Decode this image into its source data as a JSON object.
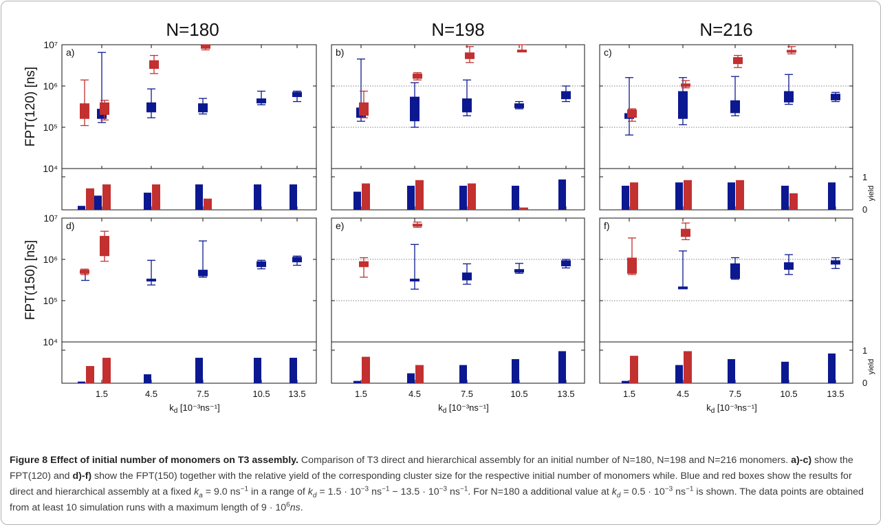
{
  "figure": {
    "column_titles": [
      "N=180",
      "N=198",
      "N=216"
    ],
    "y_tick_labels": {
      "top": [
        "10⁷",
        "10⁶",
        "10⁵",
        "10⁴"
      ],
      "bottom": [
        "10⁷",
        "10⁶",
        "10⁵",
        "10⁴"
      ]
    },
    "y_axis_labels": {
      "top": "FPT(120) [ns]",
      "bottom": "FPT(150) [ns]"
    },
    "yield_label": "yield",
    "yield_ticks": [
      "1",
      "0"
    ],
    "x_axis_label": "k",
    "x_axis_label_sub": "d",
    "x_axis_label_units": " [10⁻³ns⁻¹]",
    "colors": {
      "direct": "#0c1890",
      "hierarchical": "#c23030"
    }
  },
  "chart_data": [
    {
      "panel": "a)",
      "type": "boxplot",
      "column": "N=180",
      "row": "FPT(120)",
      "x_ticks": [
        "1.5",
        "4.5",
        "7.5",
        "10.5",
        "13.5"
      ],
      "y_scale": "log",
      "ylim": [
        10000,
        10000000
      ],
      "yield_ylim": [
        0,
        1
      ],
      "series": [
        {
          "name": "direct",
          "color": "#0c1890",
          "boxes": [
            {
              "k_d": 0.5,
              "whisker": null,
              "box": null
            },
            {
              "k_d": 1.5,
              "whisker": [
                130000,
                6500000
              ],
              "box": [
                160000,
                280000
              ]
            },
            {
              "k_d": 4.5,
              "whisker": [
                170000,
                850000
              ],
              "box": [
                230000,
                400000
              ]
            },
            {
              "k_d": 7.5,
              "whisker": [
                210000,
                500000
              ],
              "box": [
                230000,
                380000
              ]
            },
            {
              "k_d": 10.5,
              "whisker": [
                350000,
                750000
              ],
              "box": [
                380000,
                500000
              ]
            },
            {
              "k_d": 13.5,
              "whisker": [
                420000,
                750000
              ],
              "box": [
                540000,
                720000
              ]
            }
          ]
        },
        {
          "name": "hierarchical",
          "color": "#c23030",
          "boxes": [
            {
              "k_d": 0.5,
              "whisker": [
                110000,
                1400000
              ],
              "box": [
                160000,
                380000
              ]
            },
            {
              "k_d": 1.5,
              "whisker": [
                150000,
                450000
              ],
              "box": [
                200000,
                400000
              ]
            },
            {
              "k_d": 4.5,
              "whisker": [
                2000000,
                5500000
              ],
              "box": [
                2600000,
                4200000
              ]
            },
            {
              "k_d": 7.5,
              "whisker": [
                7500000,
                10000000
              ],
              "box": [
                8000000,
                9800000
              ]
            }
          ]
        }
      ],
      "yield": [
        {
          "k_d": 0.5,
          "direct": 0.12,
          "hierarchical": 0.65
        },
        {
          "k_d": 1.5,
          "direct": 0.43,
          "hierarchical": 0.77
        },
        {
          "k_d": 4.5,
          "direct": 0.52,
          "hierarchical": 0.77
        },
        {
          "k_d": 7.5,
          "direct": 0.77,
          "hierarchical": 0.34
        },
        {
          "k_d": 10.5,
          "direct": 0.77,
          "hierarchical": 0
        },
        {
          "k_d": 13.5,
          "direct": 0.77,
          "hierarchical": 0
        }
      ]
    },
    {
      "panel": "b)",
      "type": "boxplot",
      "column": "N=198",
      "row": "FPT(120)",
      "x_ticks": [
        "1.5",
        "4.5",
        "7.5",
        "10.5",
        "13.5"
      ],
      "y_scale": "log",
      "ylim": [
        10000,
        10000000
      ],
      "yield_ylim": [
        0,
        1
      ],
      "series": [
        {
          "name": "direct",
          "color": "#0c1890",
          "boxes": [
            {
              "k_d": 1.5,
              "whisker": [
                140000,
                4500000
              ],
              "box": [
                170000,
                300000
              ]
            },
            {
              "k_d": 4.5,
              "whisker": [
                100000,
                1200000
              ],
              "box": [
                140000,
                550000
              ]
            },
            {
              "k_d": 7.5,
              "whisker": [
                190000,
                1400000
              ],
              "box": [
                230000,
                500000
              ]
            },
            {
              "k_d": 10.5,
              "whisker": [
                280000,
                420000
              ],
              "box": [
                290000,
                380000
              ]
            },
            {
              "k_d": 13.5,
              "whisker": [
                420000,
                1000000
              ],
              "box": [
                480000,
                750000
              ]
            }
          ]
        },
        {
          "name": "hierarchical",
          "color": "#c23030",
          "boxes": [
            {
              "k_d": 1.5,
              "whisker": [
                170000,
                750000
              ],
              "box": [
                190000,
                400000
              ]
            },
            {
              "k_d": 4.5,
              "whisker": [
                1400000,
                2100000
              ],
              "box": [
                1500000,
                2000000
              ]
            },
            {
              "k_d": 7.5,
              "whisker": [
                3700000,
                9000000
              ],
              "box": [
                4500000,
                6500000
              ]
            },
            {
              "k_d": 10.5,
              "whisker": [
                7000000,
                10000000
              ],
              "box": [
                7200000,
                7600000
              ]
            }
          ]
        }
      ],
      "yield": [
        {
          "k_d": 1.5,
          "direct": 0.55,
          "hierarchical": 0.8
        },
        {
          "k_d": 4.5,
          "direct": 0.73,
          "hierarchical": 0.9
        },
        {
          "k_d": 7.5,
          "direct": 0.73,
          "hierarchical": 0.8
        },
        {
          "k_d": 10.5,
          "direct": 0.73,
          "hierarchical": 0.07
        },
        {
          "k_d": 13.5,
          "direct": 0.92,
          "hierarchical": 0
        }
      ]
    },
    {
      "panel": "c)",
      "type": "boxplot",
      "column": "N=216",
      "row": "FPT(120)",
      "x_ticks": [
        "1.5",
        "4.5",
        "7.5",
        "10.5",
        "13.5"
      ],
      "y_scale": "log",
      "ylim": [
        10000,
        10000000
      ],
      "yield_ylim": [
        0,
        1
      ],
      "series": [
        {
          "name": "direct",
          "color": "#0c1890",
          "boxes": [
            {
              "k_d": 1.5,
              "whisker": [
                65000,
                1600000
              ],
              "box": [
                160000,
                220000
              ]
            },
            {
              "k_d": 4.5,
              "whisker": [
                115000,
                1600000
              ],
              "box": [
                160000,
                750000
              ]
            },
            {
              "k_d": 7.5,
              "whisker": [
                190000,
                1700000
              ],
              "box": [
                220000,
                450000
              ]
            },
            {
              "k_d": 10.5,
              "whisker": [
                360000,
                1900000
              ],
              "box": [
                400000,
                750000
              ]
            },
            {
              "k_d": 13.5,
              "whisker": [
                420000,
                700000
              ],
              "box": [
                450000,
                650000
              ]
            }
          ]
        },
        {
          "name": "hierarchical",
          "color": "#c23030",
          "boxes": [
            {
              "k_d": 1.5,
              "whisker": [
                140000,
                280000
              ],
              "box": [
                170000,
                270000
              ]
            },
            {
              "k_d": 4.5,
              "whisker": [
                900000,
                1350000
              ],
              "box": [
                950000,
                1150000
              ]
            },
            {
              "k_d": 7.5,
              "whisker": [
                2800000,
                5500000
              ],
              "box": [
                3400000,
                5000000
              ]
            },
            {
              "k_d": 10.5,
              "whisker": [
                6000000,
                9000000
              ],
              "box": [
                7000000,
                7500000
              ]
            }
          ]
        }
      ],
      "yield": [
        {
          "k_d": 1.5,
          "direct": 0.73,
          "hierarchical": 0.83
        },
        {
          "k_d": 4.5,
          "direct": 0.83,
          "hierarchical": 0.9
        },
        {
          "k_d": 7.5,
          "direct": 0.83,
          "hierarchical": 0.9
        },
        {
          "k_d": 10.5,
          "direct": 0.73,
          "hierarchical": 0.5
        },
        {
          "k_d": 13.5,
          "direct": 0.83,
          "hierarchical": 0
        }
      ]
    },
    {
      "panel": "d)",
      "type": "boxplot",
      "column": "N=180",
      "row": "FPT(150)",
      "x_ticks": [
        "1.5",
        "4.5",
        "7.5",
        "10.5",
        "13.5"
      ],
      "y_scale": "log",
      "ylim": [
        10000,
        10000000
      ],
      "yield_ylim": [
        0,
        1
      ],
      "series": [
        {
          "name": "direct",
          "color": "#0c1890",
          "boxes": [
            {
              "k_d": 0.5,
              "whisker": [
                310000,
                500000
              ],
              "box": null
            },
            {
              "k_d": 4.5,
              "whisker": [
                240000,
                950000
              ],
              "box": [
                330000,
                340000
              ]
            },
            {
              "k_d": 7.5,
              "whisker": [
                370000,
                2800000
              ],
              "box": [
                390000,
                560000
              ]
            },
            {
              "k_d": 10.5,
              "whisker": [
                590000,
                950000
              ],
              "box": [
                650000,
                900000
              ]
            },
            {
              "k_d": 13.5,
              "whisker": [
                720000,
                1200000
              ],
              "box": [
                850000,
                1150000
              ]
            }
          ]
        },
        {
          "name": "hierarchical",
          "color": "#c23030",
          "boxes": [
            {
              "k_d": 0.5,
              "whisker": [
                430000,
                580000
              ],
              "box": [
                450000,
                560000
              ]
            },
            {
              "k_d": 1.5,
              "whisker": [
                900000,
                4800000
              ],
              "box": [
                1200000,
                3700000
              ]
            }
          ]
        }
      ],
      "yield": [
        {
          "k_d": 0.5,
          "direct": 0.05,
          "hierarchical": 0.52
        },
        {
          "k_d": 1.5,
          "direct": 0,
          "hierarchical": 0.77
        },
        {
          "k_d": 4.5,
          "direct": 0.27,
          "hierarchical": 0
        },
        {
          "k_d": 7.5,
          "direct": 0.77,
          "hierarchical": 0
        },
        {
          "k_d": 10.5,
          "direct": 0.77,
          "hierarchical": 0
        },
        {
          "k_d": 13.5,
          "direct": 0.77,
          "hierarchical": 0
        }
      ]
    },
    {
      "panel": "e)",
      "type": "boxplot",
      "column": "N=198",
      "row": "FPT(150)",
      "x_ticks": [
        "1.5",
        "4.5",
        "7.5",
        "10.5",
        "13.5"
      ],
      "y_scale": "log",
      "ylim": [
        10000,
        10000000
      ],
      "yield_ylim": [
        0,
        1
      ],
      "series": [
        {
          "name": "direct",
          "color": "#0c1890",
          "boxes": [
            {
              "k_d": 4.5,
              "whisker": [
                190000,
                2300000
              ],
              "box": [
                330000,
                340000
              ]
            },
            {
              "k_d": 7.5,
              "whisker": [
                250000,
                780000
              ],
              "box": [
                310000,
                480000
              ]
            },
            {
              "k_d": 10.5,
              "whisker": [
                460000,
                800000
              ],
              "box": [
                480000,
                580000
              ]
            },
            {
              "k_d": 13.5,
              "whisker": [
                620000,
                1000000
              ],
              "box": [
                680000,
                950000
              ]
            }
          ]
        },
        {
          "name": "hierarchical",
          "color": "#c23030",
          "boxes": [
            {
              "k_d": 1.5,
              "whisker": [
                370000,
                1100000
              ],
              "box": [
                650000,
                900000
              ]
            },
            {
              "k_d": 4.5,
              "whisker": [
                6000000,
                8000000
              ],
              "box": [
                6500000,
                7300000
              ]
            }
          ]
        }
      ],
      "yield": [
        {
          "k_d": 1.5,
          "direct": 0.07,
          "hierarchical": 0.8
        },
        {
          "k_d": 4.5,
          "direct": 0.3,
          "hierarchical": 0.55
        },
        {
          "k_d": 7.5,
          "direct": 0.55,
          "hierarchical": 0
        },
        {
          "k_d": 10.5,
          "direct": 0.73,
          "hierarchical": 0
        },
        {
          "k_d": 13.5,
          "direct": 0.97,
          "hierarchical": 0
        }
      ]
    },
    {
      "panel": "f)",
      "type": "boxplot",
      "column": "N=216",
      "row": "FPT(150)",
      "x_ticks": [
        "1.5",
        "4.5",
        "7.5",
        "10.5",
        "13.5"
      ],
      "y_scale": "log",
      "ylim": [
        10000,
        10000000
      ],
      "yield_ylim": [
        0,
        1
      ],
      "series": [
        {
          "name": "direct",
          "color": "#0c1890",
          "boxes": [
            {
              "k_d": 4.5,
              "whisker": [
                200000,
                1600000
              ],
              "box": [
                200000,
                220000
              ]
            },
            {
              "k_d": 7.5,
              "whisker": [
                330000,
                1100000
              ],
              "box": [
                340000,
                800000
              ]
            },
            {
              "k_d": 10.5,
              "whisker": [
                430000,
                1300000
              ],
              "box": [
                560000,
                850000
              ]
            },
            {
              "k_d": 13.5,
              "whisker": [
                600000,
                1100000
              ],
              "box": [
                750000,
                950000
              ]
            }
          ]
        },
        {
          "name": "hierarchical",
          "color": "#c23030",
          "boxes": [
            {
              "k_d": 1.5,
              "whisker": [
                430000,
                3300000
              ],
              "box": [
                450000,
                1100000
              ]
            },
            {
              "k_d": 4.5,
              "whisker": [
                3000000,
                7600000
              ],
              "box": [
                3500000,
                5500000
              ]
            }
          ]
        }
      ],
      "yield": [
        {
          "k_d": 1.5,
          "direct": 0.07,
          "hierarchical": 0.83
        },
        {
          "k_d": 4.5,
          "direct": 0.55,
          "hierarchical": 0.97
        },
        {
          "k_d": 7.5,
          "direct": 0.73,
          "hierarchical": 0
        },
        {
          "k_d": 10.5,
          "direct": 0.65,
          "hierarchical": 0
        },
        {
          "k_d": 13.5,
          "direct": 0.9,
          "hierarchical": 0
        }
      ]
    }
  ],
  "caption": {
    "title": "Figure 8 Effect of initial number of monomers on T3 assembly.",
    "t1": " Comparison of T3 direct and hierarchical assembly for an initial number of N=180, N=198 and N=216 monomers. ",
    "b1": "a)",
    "t2": "-",
    "b2": "c)",
    "t3": " show the FPT(120) and ",
    "b3": "d)",
    "t4": "-",
    "b4": "f)",
    "t5": " show the FPT(150) together with the relative yield of the corresponding cluster size for the respective initial number of monomers while. Blue and red boxes show the results for direct and hierarchical assembly at a fixed ",
    "ka": "k",
    "ka_sub": "a",
    "t6": " = 9.0 ns",
    "sup_m1": "−1",
    "t7": " in a range of ",
    "kd": "k",
    "kd_sub": "d",
    "t8": " = 1.5 · 10",
    "sup_m3": "−3",
    "t9": " ns",
    "sup_m1b": "−1",
    "t10": " − 13.5 · 10",
    "sup_m3b": "−3",
    "t11": " ns",
    "sup_m1c": "−1",
    "t12": ". For N=180 a additional value at ",
    "kd2": "k",
    "kd2_sub": "d",
    "t13": " = 0.5 · 10",
    "sup_m3c": "−3",
    "t14": " ns",
    "sup_m1d": "−1",
    "t15": " is shown. The data points are obtained from at least 10 simulation runs with a maximum length of 9 · 10",
    "sup_6": "6",
    "ns_it": "ns",
    "t16": "."
  }
}
